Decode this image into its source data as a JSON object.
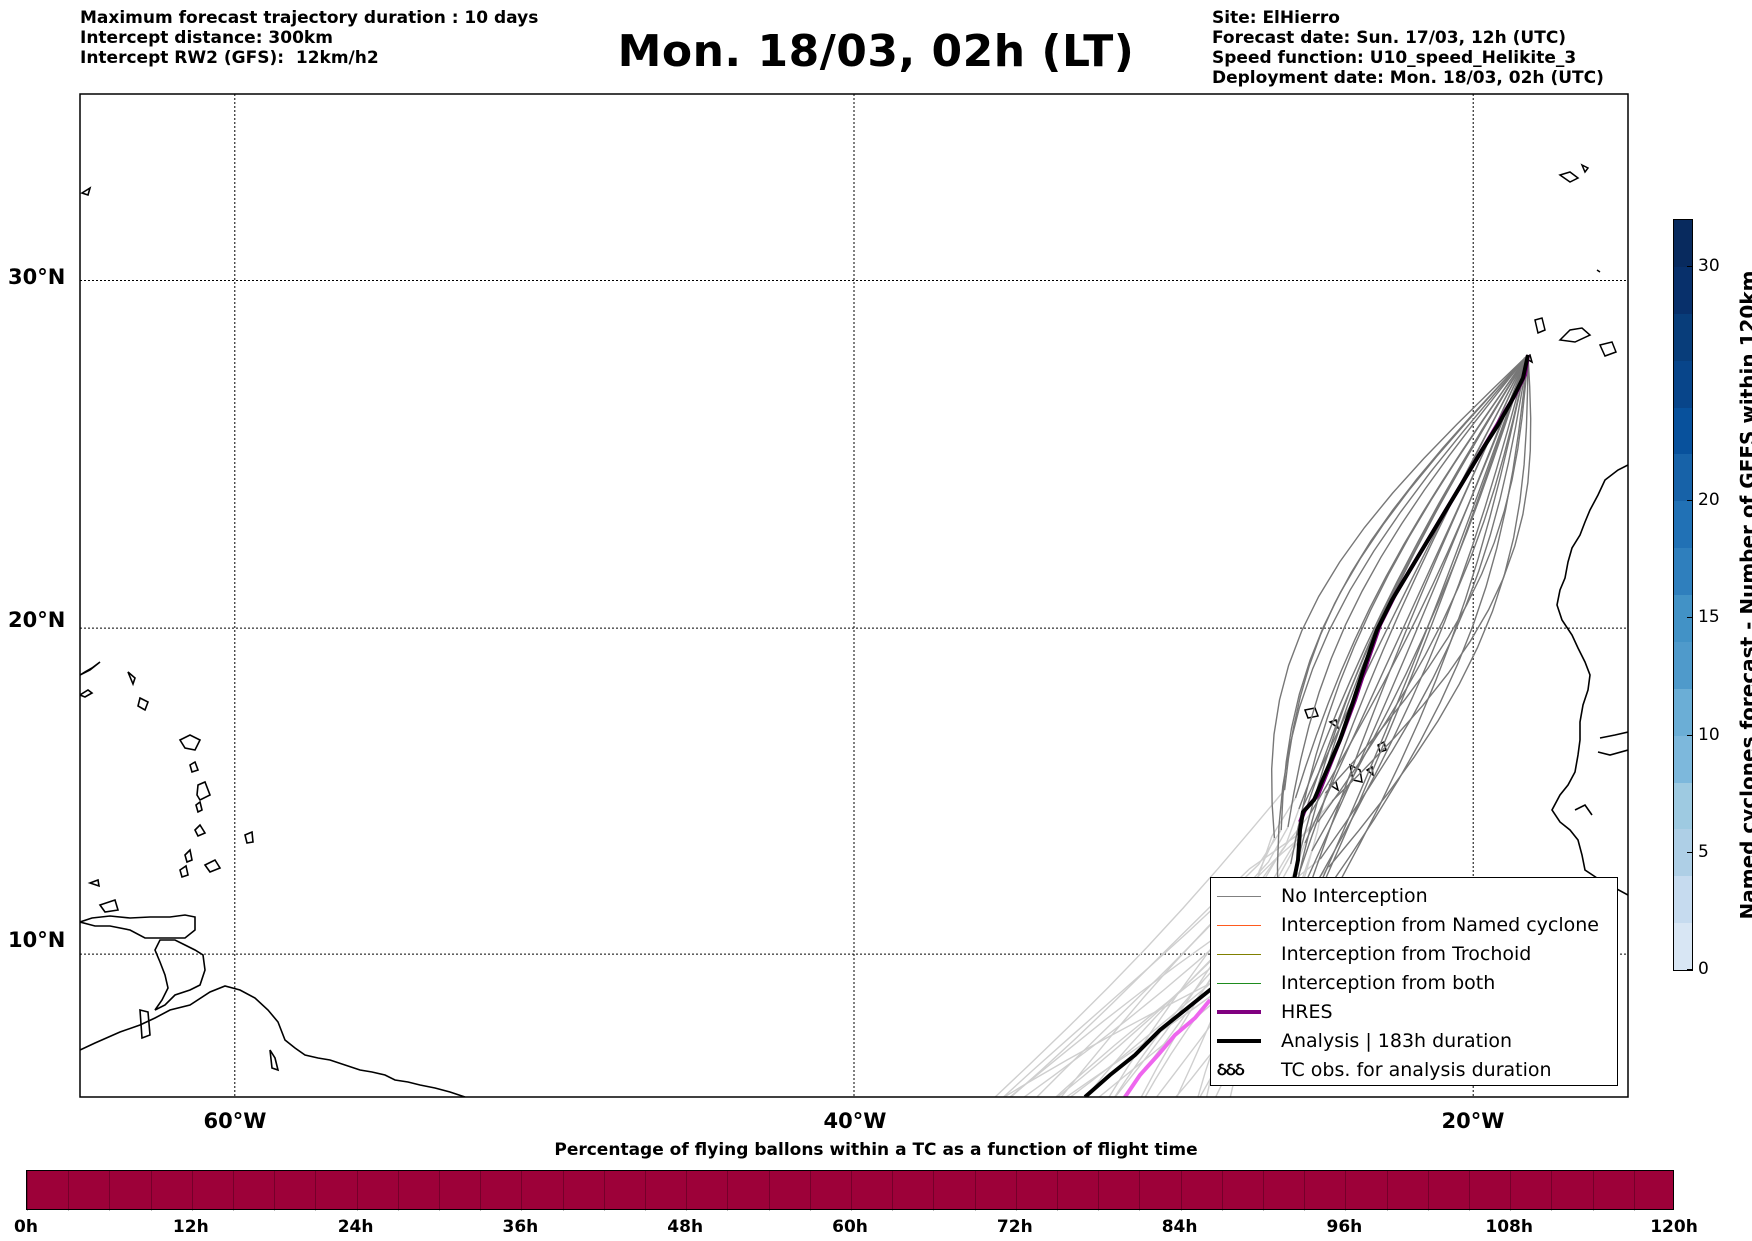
{
  "header_left": {
    "line1": "Maximum forecast trajectory duration : 10 days",
    "line2": "Intercept distance: 300km",
    "line3": "Intercept RW2 (GFS):  12km/h2"
  },
  "title": "Mon. 18/03, 02h (LT)",
  "header_right": {
    "line1": "Site: ElHierro",
    "line2": "Forecast date: Sun. 17/03, 12h (UTC)",
    "line3": "Speed function: U10_speed_Helikite_3",
    "line4": "Deployment date: Mon. 18/03, 02h (UTC)"
  },
  "map": {
    "lat_labels": [
      "30°N",
      "20°N",
      "10°N"
    ],
    "lon_labels": [
      "60°W",
      "40°W",
      "20°W"
    ],
    "lat_ticks": [
      30,
      20,
      10
    ],
    "lon_ticks": [
      -60,
      -40,
      -20
    ],
    "extent": {
      "lon_min": -65,
      "lon_max": -15,
      "lat_min": 5.5,
      "lat_max": 35
    }
  },
  "legend": {
    "items": [
      {
        "label": "No Interception",
        "color": "#808080",
        "style": "thin"
      },
      {
        "label": "Interception from Named cyclone",
        "color": "#ff5a1e",
        "style": "thin"
      },
      {
        "label": "Interception from Trochoid",
        "color": "#808000",
        "style": "thin"
      },
      {
        "label": "Interception from both",
        "color": "#1e8c1e",
        "style": "thin"
      },
      {
        "label": "HRES",
        "color": "#800080",
        "style": "thick"
      },
      {
        "label": "Analysis | 183h duration",
        "color": "#000000",
        "style": "thick"
      },
      {
        "label": "TC obs. for analysis duration",
        "color": "#000000",
        "style": "symbol",
        "symbol": "ઠઠઠ"
      }
    ]
  },
  "colorbar": {
    "label": "Named cyclones forecast - Number of GEFS within 120km",
    "ticks": [
      "0",
      "5",
      "10",
      "15",
      "20",
      "30"
    ],
    "tick_values": [
      0,
      5,
      10,
      15,
      20,
      30
    ],
    "max": 32
  },
  "percentage_bar": {
    "title": "Percentage of flying ballons within a TC as a function of flight time",
    "fill_color": "#9d0139",
    "ticks": [
      "0h",
      "12h",
      "24h",
      "36h",
      "48h",
      "60h",
      "72h",
      "84h",
      "96h",
      "108h",
      "120h"
    ]
  }
}
